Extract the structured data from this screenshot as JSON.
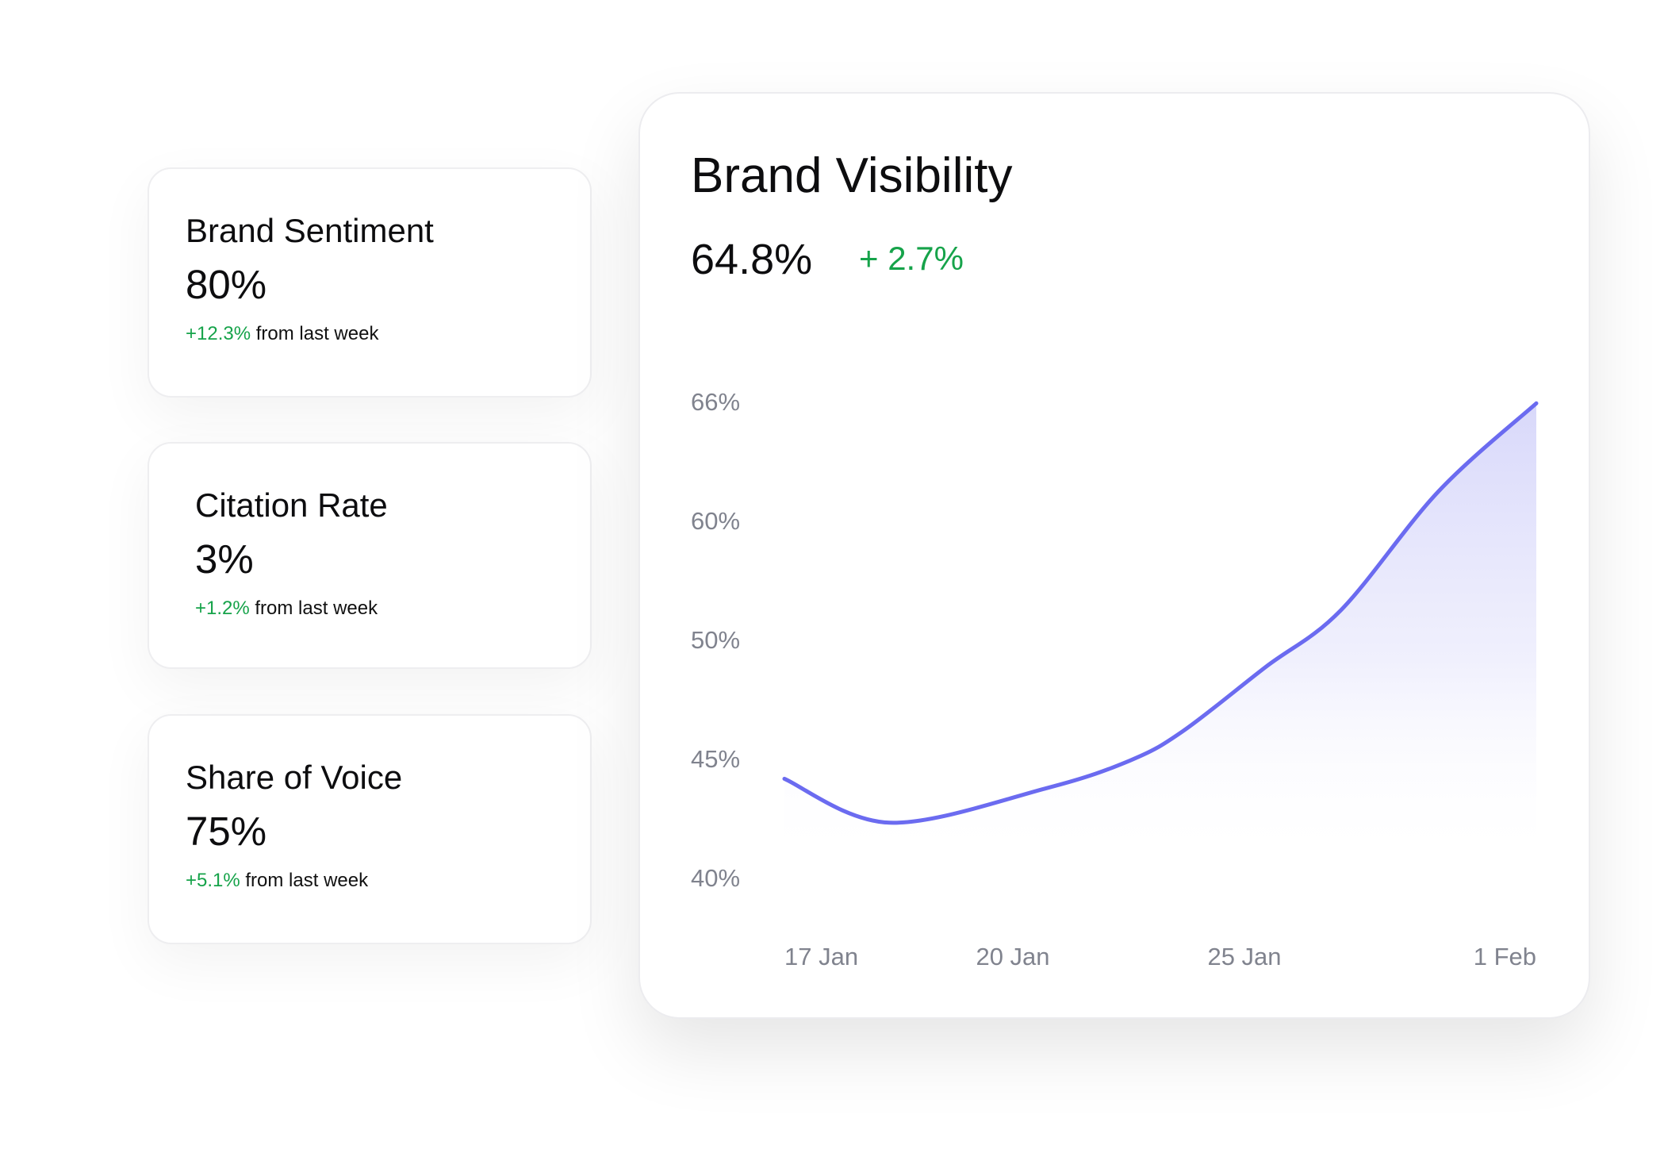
{
  "metrics": [
    {
      "title": "Brand Sentiment",
      "value": "80%",
      "change": "+12.3%",
      "change_suffix": " from last week"
    },
    {
      "title": "Citation Rate",
      "value": "3%",
      "change": "+1.2%",
      "change_suffix": " from last week"
    },
    {
      "title": "Share of Voice",
      "value": "75%",
      "change": "+5.1%",
      "change_suffix": " from last week"
    }
  ],
  "visibility": {
    "title": "Brand Visibility",
    "value": "64.8%",
    "change": "+ 2.7%"
  },
  "colors": {
    "positive": "#16a34a",
    "line": "#6b6bf0",
    "area_fill": "#dcdcfb",
    "axis_text": "#80838e"
  },
  "chart_data": {
    "type": "area",
    "title": "Brand Visibility",
    "xlabel": "",
    "ylabel": "",
    "y_tick_labels": [
      "66%",
      "60%",
      "50%",
      "45%",
      "40%"
    ],
    "x_tick_labels": [
      "17 Jan",
      "20 Jan",
      "25 Jan",
      "1 Feb"
    ],
    "grid": false,
    "legend": "none",
    "series": [
      {
        "x": [
          0,
          0.14,
          0.35,
          0.46,
          0.53,
          0.64,
          0.74,
          0.87,
          1.0
        ],
        "y": [
          45.4,
          43.0,
          44.9,
          46.4,
          48.0,
          51.5,
          54.6,
          61.1,
          65.9
        ]
      }
    ]
  }
}
